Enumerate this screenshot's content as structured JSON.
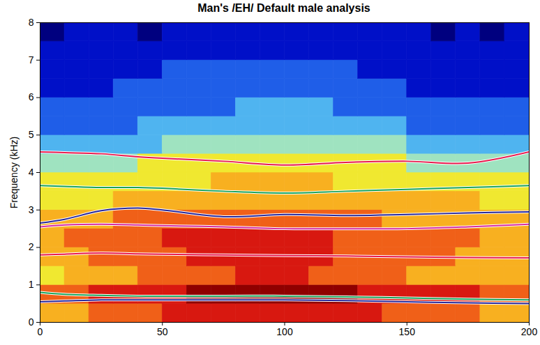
{
  "chart_data": {
    "type": "line",
    "title": "Man's /EH/ Default male analysis",
    "y_label": "Frequency (kHz)",
    "x": [
      0,
      10,
      25,
      40,
      50,
      75,
      100,
      125,
      150,
      175,
      200
    ],
    "xlim": [
      0,
      200
    ],
    "xticks": [
      0,
      50,
      100,
      150,
      200
    ],
    "ylim": [
      0,
      8
    ],
    "yticks": [
      0,
      1,
      2,
      3,
      4,
      5,
      6,
      7,
      8
    ],
    "series": [
      {
        "color": "#e8194c",
        "values": [
          4.55,
          4.53,
          4.5,
          4.42,
          4.38,
          4.3,
          4.2,
          4.27,
          4.3,
          4.25,
          4.55
        ]
      },
      {
        "color": "#1aa35a",
        "values": [
          3.65,
          3.63,
          3.6,
          3.6,
          3.58,
          3.5,
          3.45,
          3.5,
          3.55,
          3.6,
          3.65
        ]
      },
      {
        "color": "#28289a",
        "values": [
          2.65,
          2.75,
          2.98,
          3.05,
          3.0,
          2.82,
          2.88,
          2.85,
          2.88,
          2.92,
          2.95
        ]
      },
      {
        "color": "#d62ca0",
        "values": [
          2.55,
          2.6,
          2.62,
          2.6,
          2.58,
          2.55,
          2.5,
          2.5,
          2.5,
          2.55,
          2.62
        ]
      },
      {
        "color": "#e8194c",
        "values": [
          1.8,
          1.82,
          1.85,
          1.83,
          1.82,
          1.8,
          1.78,
          1.77,
          1.75,
          1.73,
          1.72
        ]
      },
      {
        "color": "#1aa35a",
        "values": [
          0.8,
          0.75,
          0.72,
          0.7,
          0.7,
          0.7,
          0.7,
          0.68,
          0.65,
          0.62,
          0.6
        ]
      },
      {
        "color": "#28289a",
        "values": [
          0.55,
          0.57,
          0.6,
          0.6,
          0.6,
          0.6,
          0.6,
          0.58,
          0.55,
          0.52,
          0.5
        ]
      }
    ],
    "heatmap": {
      "x_edges": [
        0,
        10,
        20,
        30,
        40,
        50,
        60,
        70,
        80,
        90,
        100,
        110,
        120,
        130,
        140,
        150,
        160,
        170,
        180,
        190,
        200
      ],
      "y_edges": [
        0,
        0.5,
        1,
        1.5,
        2,
        2.5,
        3,
        3.5,
        4,
        4.5,
        5,
        5.5,
        6,
        6.5,
        7,
        7.5,
        8
      ],
      "range": [
        0,
        9
      ],
      "cells": [
        [
          6,
          6,
          7,
          7,
          7,
          8,
          8,
          8,
          8,
          8,
          8,
          8,
          8,
          8,
          7,
          7,
          7,
          7,
          6,
          6
        ],
        [
          7,
          7,
          8,
          8,
          8,
          8,
          9,
          9,
          9,
          9,
          9,
          9,
          9,
          8,
          8,
          8,
          8,
          8,
          7,
          7
        ],
        [
          5,
          6,
          6,
          6,
          7,
          7,
          7,
          7,
          8,
          8,
          8,
          7,
          7,
          7,
          7,
          6,
          6,
          6,
          6,
          6
        ],
        [
          6,
          6,
          7,
          7,
          7,
          7,
          8,
          8,
          8,
          8,
          8,
          8,
          7,
          7,
          7,
          7,
          7,
          6,
          6,
          6
        ],
        [
          6,
          7,
          7,
          7,
          7,
          8,
          8,
          8,
          8,
          8,
          8,
          8,
          7,
          7,
          7,
          7,
          7,
          7,
          6,
          6
        ],
        [
          6,
          6,
          6,
          7,
          7,
          7,
          7,
          7,
          7,
          7,
          7,
          7,
          7,
          7,
          6,
          6,
          6,
          6,
          6,
          6
        ],
        [
          5,
          5,
          5,
          6,
          6,
          6,
          6,
          6,
          6,
          6,
          6,
          6,
          6,
          6,
          6,
          6,
          6,
          6,
          5,
          5
        ],
        [
          5,
          5,
          5,
          5,
          5,
          5,
          5,
          6,
          6,
          6,
          6,
          6,
          5,
          5,
          5,
          5,
          5,
          5,
          5,
          5
        ],
        [
          4,
          4,
          4,
          4,
          5,
          5,
          5,
          5,
          5,
          5,
          5,
          5,
          5,
          5,
          5,
          4,
          4,
          4,
          4,
          4
        ],
        [
          3,
          3,
          3,
          3,
          3,
          4,
          4,
          4,
          4,
          4,
          4,
          4,
          4,
          4,
          4,
          3,
          3,
          3,
          3,
          3
        ],
        [
          2,
          2,
          2,
          2,
          3,
          3,
          3,
          3,
          3,
          3,
          3,
          3,
          3,
          3,
          3,
          2,
          2,
          2,
          2,
          2
        ],
        [
          2,
          2,
          2,
          2,
          2,
          2,
          2,
          2,
          3,
          3,
          3,
          3,
          2,
          2,
          2,
          2,
          2,
          2,
          2,
          2
        ],
        [
          1,
          1,
          1,
          2,
          2,
          2,
          2,
          2,
          2,
          2,
          2,
          2,
          2,
          2,
          2,
          1,
          1,
          1,
          1,
          1
        ],
        [
          1,
          1,
          1,
          1,
          1,
          2,
          2,
          2,
          2,
          2,
          2,
          2,
          2,
          1,
          1,
          1,
          1,
          1,
          1,
          1
        ],
        [
          1,
          1,
          1,
          1,
          1,
          1,
          1,
          1,
          1,
          1,
          1,
          1,
          1,
          1,
          1,
          1,
          1,
          1,
          1,
          1
        ],
        [
          0,
          1,
          1,
          1,
          0,
          1,
          1,
          1,
          1,
          1,
          1,
          1,
          1,
          1,
          1,
          1,
          0,
          1,
          0,
          1
        ]
      ]
    }
  }
}
